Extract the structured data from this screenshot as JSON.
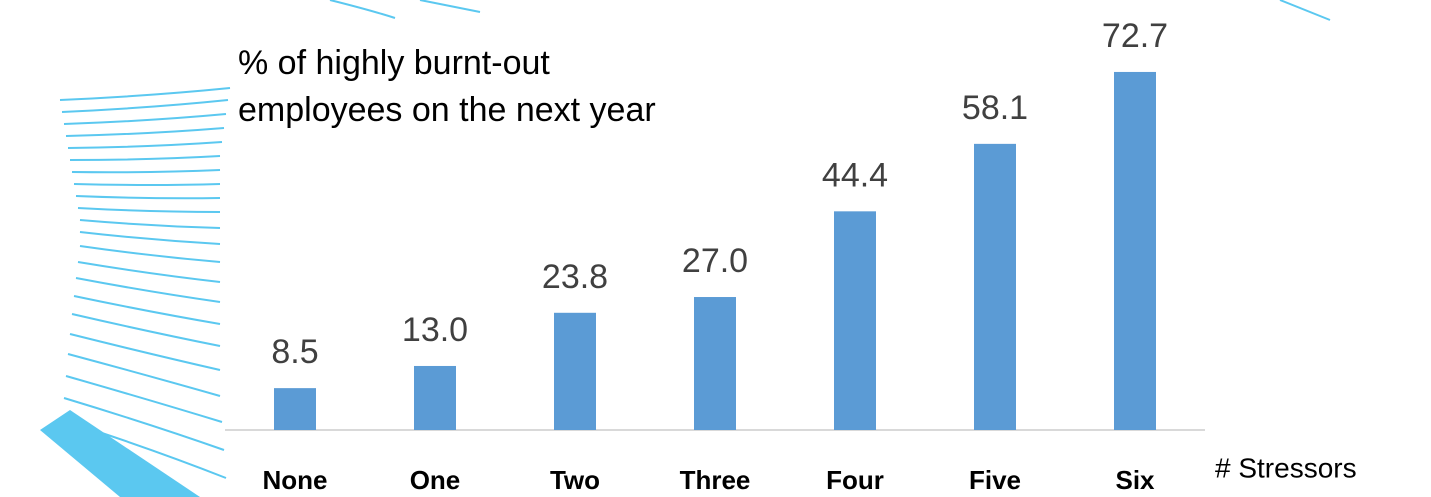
{
  "chart_data": {
    "type": "bar",
    "title": "% of highly burnt-out employees on the next year",
    "x_label": "# Stressors",
    "categories": [
      "None",
      "One",
      "Two",
      "Three",
      "Four",
      "Five",
      "Six"
    ],
    "values": [
      8.5,
      13.0,
      23.8,
      27.0,
      44.4,
      58.1,
      72.7
    ],
    "value_labels": [
      "8.5",
      "13.0",
      "23.8",
      "27.0",
      "44.4",
      "58.1",
      "72.7"
    ],
    "color": "#5b9bd5",
    "ylim": [
      0,
      80
    ]
  }
}
